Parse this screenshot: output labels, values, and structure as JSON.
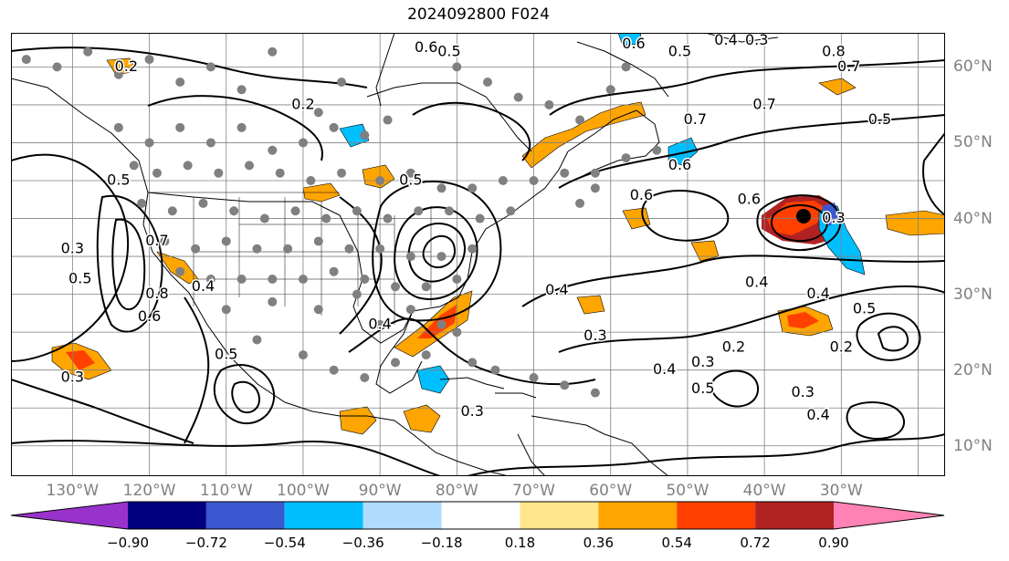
{
  "title": "2024092800 F024",
  "lon_labels": [
    {
      "text": "130°W",
      "lon": -130
    },
    {
      "text": "120°W",
      "lon": -120
    },
    {
      "text": "110°W",
      "lon": -110
    },
    {
      "text": "100°W",
      "lon": -100
    },
    {
      "text": "90°W",
      "lon": -90
    },
    {
      "text": "80°W",
      "lon": -80
    },
    {
      "text": "70°W",
      "lon": -70
    },
    {
      "text": "60°W",
      "lon": -60
    },
    {
      "text": "50°W",
      "lon": -50
    },
    {
      "text": "40°W",
      "lon": -40
    },
    {
      "text": "30°W",
      "lon": -30
    }
  ],
  "lat_labels": [
    {
      "text": "60°N",
      "lat": 60
    },
    {
      "text": "50°N",
      "lat": 50
    },
    {
      "text": "40°N",
      "lat": 40
    },
    {
      "text": "30°N",
      "lat": 30
    },
    {
      "text": "20°N",
      "lat": 20
    },
    {
      "text": "10°N",
      "lat": 10
    }
  ],
  "colorbar": {
    "colors": [
      "#9932cc",
      "#000080",
      "#3a58d0",
      "#00bfff",
      "#afdcff",
      "#ffffff",
      "#ffe68c",
      "#ffa500",
      "#ff4000",
      "#b22222",
      "#ff82b4"
    ],
    "tick_labels": [
      "−0.90",
      "−0.72",
      "−0.54",
      "−0.36",
      "−0.18",
      "0.18",
      "0.36",
      "0.54",
      "0.72",
      "0.90"
    ]
  },
  "contour_labels": [
    {
      "text": "0.6",
      "lon": -84,
      "lat": 62.5
    },
    {
      "text": "0.5",
      "lon": -81,
      "lat": 62
    },
    {
      "text": "0.2",
      "lon": -100,
      "lat": 55
    },
    {
      "text": "0.5",
      "lon": -86,
      "lat": 45
    },
    {
      "text": "0.5",
      "lon": -124,
      "lat": 45
    },
    {
      "text": "0.7",
      "lon": -119,
      "lat": 37
    },
    {
      "text": "0.8",
      "lon": -119,
      "lat": 30
    },
    {
      "text": "0.4",
      "lon": -113,
      "lat": 31
    },
    {
      "text": "0.3",
      "lon": -130,
      "lat": 36
    },
    {
      "text": "0.5",
      "lon": -129,
      "lat": 32
    },
    {
      "text": "0.6",
      "lon": -120,
      "lat": 27
    },
    {
      "text": "0.5",
      "lon": -110,
      "lat": 22
    },
    {
      "text": "0.3",
      "lon": -130,
      "lat": 19
    },
    {
      "text": "0.2",
      "lon": -123,
      "lat": 60
    },
    {
      "text": "0.4",
      "lon": -90,
      "lat": 26
    },
    {
      "text": "0.6",
      "lon": -57,
      "lat": 63
    },
    {
      "text": "0.5",
      "lon": -51,
      "lat": 62
    },
    {
      "text": "0.4",
      "lon": -45,
      "lat": 63.5
    },
    {
      "text": "0.3",
      "lon": -41,
      "lat": 63.5
    },
    {
      "text": "0.8",
      "lon": -31,
      "lat": 62
    },
    {
      "text": "0.7",
      "lon": -29,
      "lat": 60
    },
    {
      "text": "0.7",
      "lon": -40,
      "lat": 55
    },
    {
      "text": "0.7",
      "lon": -49,
      "lat": 53
    },
    {
      "text": "0.5",
      "lon": -25,
      "lat": 53
    },
    {
      "text": "0.6",
      "lon": -51,
      "lat": 47
    },
    {
      "text": "0.6",
      "lon": -56,
      "lat": 43
    },
    {
      "text": "0.6",
      "lon": -42,
      "lat": 42.5
    },
    {
      "text": "0.3",
      "lon": -31,
      "lat": 40
    },
    {
      "text": "0.4",
      "lon": -41,
      "lat": 31.5
    },
    {
      "text": "0.3",
      "lon": -62,
      "lat": 24.5
    },
    {
      "text": "0.4",
      "lon": -67,
      "lat": 30.5
    },
    {
      "text": "0.4",
      "lon": -33,
      "lat": 30
    },
    {
      "text": "0.5",
      "lon": -27,
      "lat": 28
    },
    {
      "text": "0.2",
      "lon": -30,
      "lat": 23
    },
    {
      "text": "0.2",
      "lon": -44,
      "lat": 23
    },
    {
      "text": "0.3",
      "lon": -48,
      "lat": 21
    },
    {
      "text": "0.4",
      "lon": -53,
      "lat": 20
    },
    {
      "text": "0.5",
      "lon": -48,
      "lat": 17.5
    },
    {
      "text": "0.3",
      "lon": -35,
      "lat": 17
    },
    {
      "text": "0.4",
      "lon": -33,
      "lat": 14
    },
    {
      "text": "0.3",
      "lon": -78,
      "lat": 14.5
    }
  ]
}
